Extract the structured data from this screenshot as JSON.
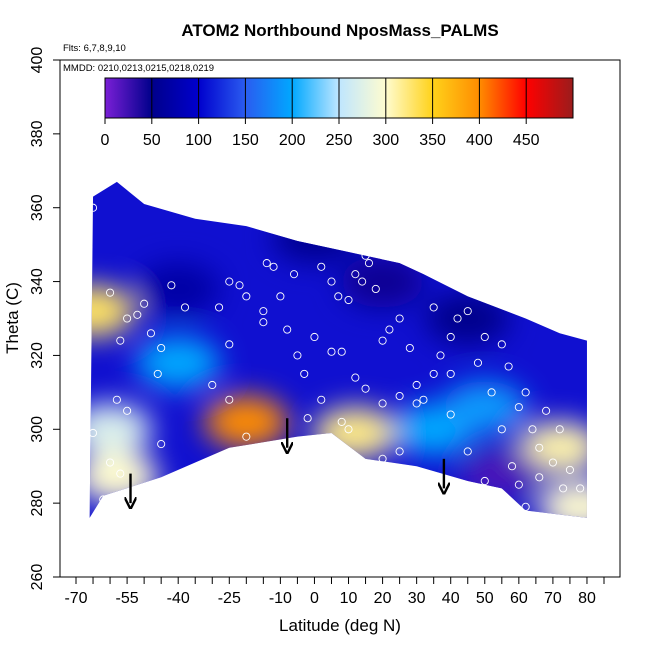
{
  "chart_data": {
    "type": "heatmap",
    "title": "ATOM2 Northbound NposMass_PALMS",
    "annotations": [
      "Flts: 6,7,8,9,10",
      "MMDD: 0210,0213,0215,0218,0219"
    ],
    "xlabel": "Latitude (deg N)",
    "ylabel": "Theta (C)",
    "xlim": [
      -70,
      85
    ],
    "ylim": [
      260,
      400
    ],
    "x_ticks": [
      -70,
      -55,
      -40,
      -25,
      -10,
      0,
      10,
      20,
      30,
      40,
      50,
      60,
      70,
      80
    ],
    "y_ticks": [
      260,
      280,
      300,
      320,
      340,
      360,
      380,
      400
    ],
    "colorbar": {
      "min": 0,
      "max": 500,
      "tick_values": [
        0,
        50,
        100,
        150,
        200,
        250,
        300,
        350,
        400,
        450
      ],
      "colors": [
        "#7a1fd6",
        "#00008b",
        "#0000cd",
        "#2a5cf0",
        "#00a8ff",
        "#bfe6ff",
        "#fffccf",
        "#ffd21a",
        "#ff8c00",
        "#ff0000",
        "#9b1c1c"
      ]
    },
    "domain": {
      "top": [
        [
          -65,
          363
        ],
        [
          -58,
          367
        ],
        [
          -50,
          361
        ],
        [
          -35,
          357
        ],
        [
          -20,
          355
        ],
        [
          -5,
          351
        ],
        [
          10,
          348
        ],
        [
          25,
          345
        ],
        [
          32,
          342
        ],
        [
          45,
          336
        ],
        [
          62,
          330
        ],
        [
          72,
          326
        ],
        [
          80,
          324
        ]
      ],
      "bottom": [
        [
          -66,
          276
        ],
        [
          -62,
          282
        ],
        [
          -45,
          287
        ],
        [
          -25,
          295
        ],
        [
          -5,
          298
        ],
        [
          5,
          299
        ],
        [
          15,
          292
        ],
        [
          30,
          290
        ],
        [
          45,
          286
        ],
        [
          55,
          284
        ],
        [
          62,
          278
        ],
        [
          80,
          276
        ]
      ]
    },
    "cells": [
      {
        "x": -40,
        "y": 338,
        "value": 70
      },
      {
        "x": 0,
        "y": 352,
        "value": 55
      },
      {
        "x": 20,
        "y": 340,
        "value": 45
      },
      {
        "x": 45,
        "y": 330,
        "value": 50
      },
      {
        "x": -60,
        "y": 300,
        "value": 270
      },
      {
        "x": -65,
        "y": 332,
        "value": 330
      },
      {
        "x": -20,
        "y": 302,
        "value": 400
      },
      {
        "x": 12,
        "y": 299,
        "value": 320
      },
      {
        "x": 72,
        "y": 295,
        "value": 310
      },
      {
        "x": 78,
        "y": 279,
        "value": 300
      },
      {
        "x": -58,
        "y": 287,
        "value": 300
      },
      {
        "x": 55,
        "y": 288,
        "value": 20
      },
      {
        "x": -40,
        "y": 318,
        "value": 200
      },
      {
        "x": 35,
        "y": 300,
        "value": 200
      },
      {
        "x": 50,
        "y": 306,
        "value": 190
      }
    ],
    "points": [
      {
        "x": -65,
        "y": 360
      },
      {
        "x": -60,
        "y": 337
      },
      {
        "x": -57,
        "y": 324
      },
      {
        "x": -55,
        "y": 330
      },
      {
        "x": -52,
        "y": 331
      },
      {
        "x": -48,
        "y": 326
      },
      {
        "x": -45,
        "y": 322
      },
      {
        "x": -42,
        "y": 339
      },
      {
        "x": -50,
        "y": 334
      },
      {
        "x": -46,
        "y": 315
      },
      {
        "x": -55,
        "y": 305
      },
      {
        "x": -58,
        "y": 308
      },
      {
        "x": -45,
        "y": 296
      },
      {
        "x": -40,
        "y": 286
      },
      {
        "x": -62,
        "y": 281
      },
      {
        "x": -57,
        "y": 288
      },
      {
        "x": -65,
        "y": 299
      },
      {
        "x": -60,
        "y": 291
      },
      {
        "x": -38,
        "y": 333
      },
      {
        "x": -25,
        "y": 340
      },
      {
        "x": -22,
        "y": 339
      },
      {
        "x": -20,
        "y": 336
      },
      {
        "x": -15,
        "y": 332
      },
      {
        "x": -28,
        "y": 333
      },
      {
        "x": -25,
        "y": 323
      },
      {
        "x": -30,
        "y": 312
      },
      {
        "x": -25,
        "y": 308
      },
      {
        "x": -20,
        "y": 298
      },
      {
        "x": -15,
        "y": 329
      },
      {
        "x": -10,
        "y": 336
      },
      {
        "x": -8,
        "y": 327
      },
      {
        "x": -6,
        "y": 342
      },
      {
        "x": -12,
        "y": 344
      },
      {
        "x": -14,
        "y": 345
      },
      {
        "x": -5,
        "y": 320
      },
      {
        "x": 0,
        "y": 325
      },
      {
        "x": -3,
        "y": 315
      },
      {
        "x": 2,
        "y": 344
      },
      {
        "x": 5,
        "y": 340
      },
      {
        "x": 7,
        "y": 336
      },
      {
        "x": 10,
        "y": 335
      },
      {
        "x": 12,
        "y": 342
      },
      {
        "x": 14,
        "y": 340
      },
      {
        "x": 16,
        "y": 345
      },
      {
        "x": 18,
        "y": 338
      },
      {
        "x": 20,
        "y": 324
      },
      {
        "x": 22,
        "y": 327
      },
      {
        "x": 25,
        "y": 330
      },
      {
        "x": 28,
        "y": 322
      },
      {
        "x": 30,
        "y": 312
      },
      {
        "x": 32,
        "y": 308
      },
      {
        "x": 35,
        "y": 315
      },
      {
        "x": 37,
        "y": 320
      },
      {
        "x": 40,
        "y": 325
      },
      {
        "x": 42,
        "y": 330
      },
      {
        "x": 45,
        "y": 332
      },
      {
        "x": 48,
        "y": 318
      },
      {
        "x": 50,
        "y": 325
      },
      {
        "x": 52,
        "y": 310
      },
      {
        "x": 55,
        "y": 323
      },
      {
        "x": 57,
        "y": 317
      },
      {
        "x": 60,
        "y": 306
      },
      {
        "x": 62,
        "y": 310
      },
      {
        "x": 64,
        "y": 300
      },
      {
        "x": 66,
        "y": 295
      },
      {
        "x": 68,
        "y": 305
      },
      {
        "x": 70,
        "y": 291
      },
      {
        "x": 73,
        "y": 284
      },
      {
        "x": 75,
        "y": 289
      },
      {
        "x": 78,
        "y": 284
      },
      {
        "x": 60,
        "y": 285
      },
      {
        "x": 50,
        "y": 286
      },
      {
        "x": 45,
        "y": 294
      },
      {
        "x": 40,
        "y": 304
      },
      {
        "x": 30,
        "y": 307
      },
      {
        "x": 25,
        "y": 309
      },
      {
        "x": 20,
        "y": 307
      },
      {
        "x": 15,
        "y": 311
      },
      {
        "x": 12,
        "y": 314
      },
      {
        "x": 8,
        "y": 321
      },
      {
        "x": 5,
        "y": 321
      },
      {
        "x": 2,
        "y": 308
      },
      {
        "x": -2,
        "y": 303
      },
      {
        "x": 25,
        "y": 294
      },
      {
        "x": 20,
        "y": 292
      },
      {
        "x": 10,
        "y": 300
      },
      {
        "x": 8,
        "y": 302
      },
      {
        "x": 55,
        "y": 300
      },
      {
        "x": 58,
        "y": 290
      },
      {
        "x": 62,
        "y": 279
      },
      {
        "x": 66,
        "y": 287
      },
      {
        "x": 72,
        "y": 300
      },
      {
        "x": 15,
        "y": 347
      },
      {
        "x": 32,
        "y": 347
      },
      {
        "x": 35,
        "y": 333
      },
      {
        "x": 40,
        "y": 315
      }
    ],
    "arrows": [
      {
        "x": -54,
        "y_tail": 288,
        "y_head": 280
      },
      {
        "x": -8,
        "y_tail": 303,
        "y_head": 295
      },
      {
        "x": 38,
        "y_tail": 292,
        "y_head": 284
      }
    ]
  }
}
